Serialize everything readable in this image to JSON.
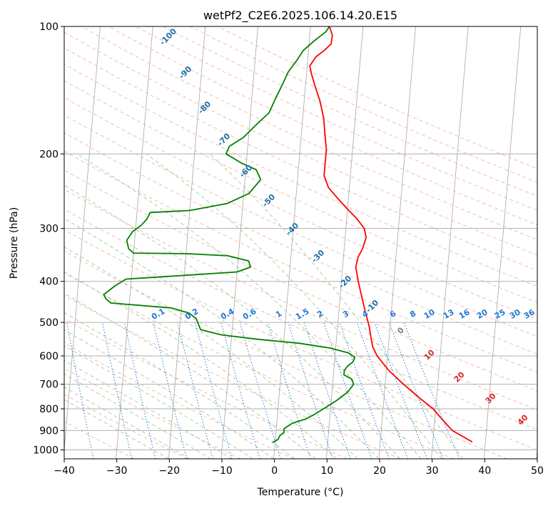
{
  "chart_data": {
    "type": "line",
    "title": "wetPf2_C2E6.2025.106.14.20.E15",
    "xlabel": "Temperature (°C)",
    "ylabel": "Pressure (hPa)",
    "xlim": [
      -40,
      50
    ],
    "ylim": [
      1050,
      100
    ],
    "y_scale": "log",
    "grid": true,
    "x_ticks": [
      -40,
      -30,
      -20,
      -10,
      0,
      10,
      20,
      30,
      40,
      50
    ],
    "y_ticks": [
      100,
      200,
      300,
      400,
      500,
      600,
      700,
      800,
      900,
      1000
    ],
    "x_tick_labels": [
      "−40",
      "−30",
      "−20",
      "−10",
      "0",
      "10",
      "20",
      "30",
      "40",
      "50"
    ],
    "y_tick_labels": [
      "100",
      "200",
      "300",
      "400",
      "500",
      "600",
      "700",
      "800",
      "900",
      "1000"
    ],
    "series": [
      {
        "color": "#ff0000",
        "points": [
          [
            37.5,
            958
          ],
          [
            33.5,
            900
          ],
          [
            31.5,
            850
          ],
          [
            29.5,
            800
          ],
          [
            26.5,
            750
          ],
          [
            23.5,
            700
          ],
          [
            20.5,
            650
          ],
          [
            18.0,
            600
          ],
          [
            17.0,
            570
          ],
          [
            16.5,
            540
          ],
          [
            16.0,
            510
          ],
          [
            15.0,
            470
          ],
          [
            14.0,
            430
          ],
          [
            13.2,
            400
          ],
          [
            12.5,
            370
          ],
          [
            12.8,
            350
          ],
          [
            13.5,
            335
          ],
          [
            14.0,
            315
          ],
          [
            13.5,
            300
          ],
          [
            12.0,
            285
          ],
          [
            10.0,
            270
          ],
          [
            8.0,
            255
          ],
          [
            6.0,
            240
          ],
          [
            5.0,
            225
          ],
          [
            5.0,
            210
          ],
          [
            5.0,
            195
          ],
          [
            4.5,
            180
          ],
          [
            4.0,
            165
          ],
          [
            3.0,
            150
          ],
          [
            2.0,
            140
          ],
          [
            1.0,
            130
          ],
          [
            0.5,
            124
          ],
          [
            1.5,
            118
          ],
          [
            3.0,
            114
          ],
          [
            4.2,
            110
          ],
          [
            4.3,
            105
          ],
          [
            3.6,
            100
          ]
        ]
      },
      {
        "color": "#008000",
        "points": [
          [
            -0.5,
            960
          ],
          [
            0.5,
            945
          ],
          [
            0.8,
            925
          ],
          [
            1.5,
            910
          ],
          [
            1.5,
            890
          ],
          [
            3.0,
            865
          ],
          [
            5.5,
            845
          ],
          [
            7.0,
            825
          ],
          [
            9.0,
            795
          ],
          [
            11.0,
            765
          ],
          [
            13.0,
            730
          ],
          [
            14.0,
            700
          ],
          [
            13.5,
            680
          ],
          [
            12.0,
            665
          ],
          [
            12.0,
            650
          ],
          [
            12.5,
            635
          ],
          [
            13.5,
            620
          ],
          [
            13.8,
            605
          ],
          [
            12.5,
            590
          ],
          [
            9.0,
            575
          ],
          [
            3.0,
            560
          ],
          [
            -5.0,
            548
          ],
          [
            -12.0,
            535
          ],
          [
            -16.0,
            520
          ],
          [
            -16.5,
            505
          ],
          [
            -17.0,
            490
          ],
          [
            -18.5,
            475
          ],
          [
            -22.0,
            462
          ],
          [
            -33.5,
            450
          ],
          [
            -34.5,
            440
          ],
          [
            -35.0,
            430
          ],
          [
            -33.0,
            410
          ],
          [
            -31.0,
            395
          ],
          [
            -24.0,
            390
          ],
          [
            -10.0,
            380
          ],
          [
            -7.5,
            370
          ],
          [
            -8.0,
            358
          ],
          [
            -12.0,
            348
          ],
          [
            -20.0,
            344
          ],
          [
            -30.0,
            343
          ],
          [
            -31.0,
            335
          ],
          [
            -31.5,
            320
          ],
          [
            -30.5,
            305
          ],
          [
            -29.0,
            295
          ],
          [
            -28.0,
            285
          ],
          [
            -27.5,
            275
          ],
          [
            -20.0,
            272
          ],
          [
            -13.0,
            262
          ],
          [
            -9.0,
            248
          ],
          [
            -7.0,
            230
          ],
          [
            -8.0,
            218
          ],
          [
            -11.0,
            210
          ],
          [
            -14.0,
            200
          ],
          [
            -13.5,
            192
          ],
          [
            -11.0,
            183
          ],
          [
            -9.0,
            172
          ],
          [
            -6.5,
            160
          ],
          [
            -5.5,
            148
          ],
          [
            -4.5,
            138
          ],
          [
            -3.5,
            128
          ],
          [
            -2.0,
            120
          ],
          [
            -1.0,
            114
          ],
          [
            1.0,
            108
          ],
          [
            3.0,
            103
          ],
          [
            3.6,
            100
          ]
        ]
      }
    ],
    "annotations": {
      "dry_adiabat_labels": [
        "-100",
        "-90",
        "-80",
        "-70",
        "-60",
        "-50",
        "-40",
        "-30",
        "-20",
        "-10",
        "0",
        "10",
        "20",
        "30",
        "40"
      ],
      "mixing_ratio_labels": [
        "0.1",
        "0.2",
        "0.4",
        "0.6",
        "1",
        "1.5",
        "2",
        "3",
        "4",
        "6",
        "8",
        "10",
        "13",
        "16",
        "20",
        "25",
        "30",
        "36"
      ]
    }
  },
  "colors": {
    "temperature": "#ff0000",
    "dewpoint": "#008000",
    "dry_adiabat": "#f3a07c",
    "moist_adiabat": "#8fc68f",
    "mixing_ratio": "#1f77d4",
    "isotherm": "#808080",
    "cold_label": "#1f6fa8",
    "warm_label": "#d62728",
    "zero_label": "#808080"
  }
}
